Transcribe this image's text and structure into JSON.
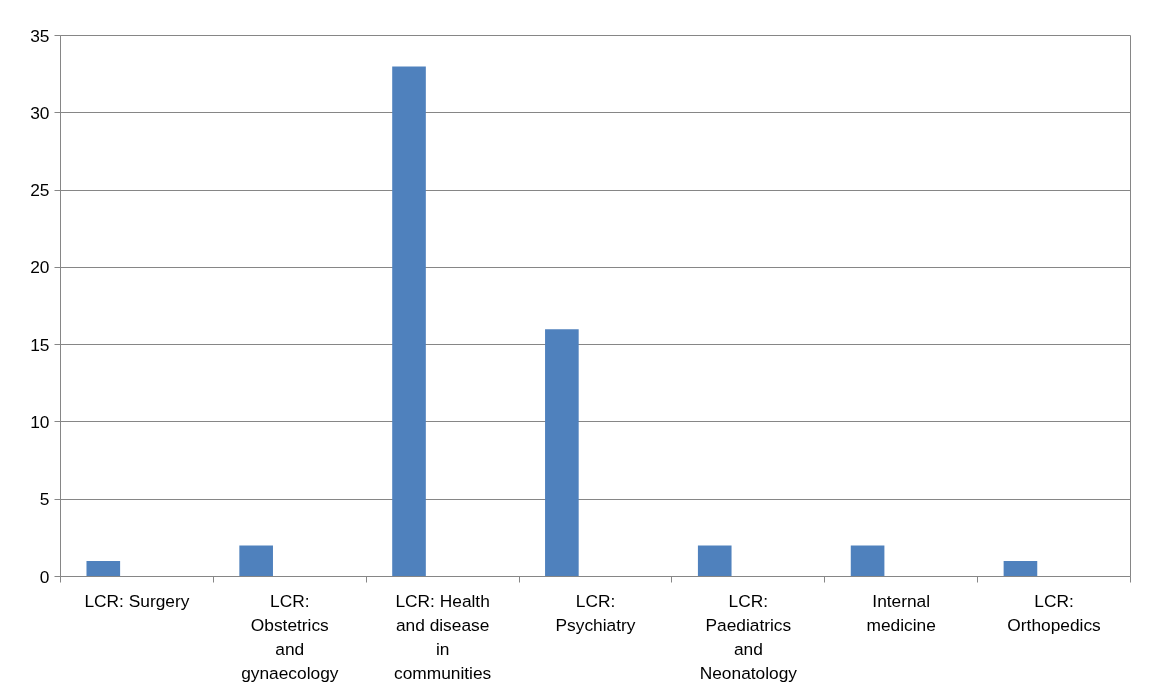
{
  "chart_data": {
    "type": "bar",
    "categories": [
      "LCR: Surgery",
      "LCR: Obstetrics and gynaecology",
      "LCR: Health and disease in communities",
      "LCR: Psychiatry",
      "LCR: Paediatrics and Neonatology",
      "Internal medicine",
      "LCR: Orthopedics"
    ],
    "values": [
      1,
      2,
      33,
      16,
      2,
      2,
      1
    ],
    "color": "#4f81bd",
    "ylim": [
      0,
      35
    ],
    "yticks": [
      0,
      5,
      10,
      15,
      20,
      25,
      30,
      35
    ],
    "grid": "y"
  }
}
